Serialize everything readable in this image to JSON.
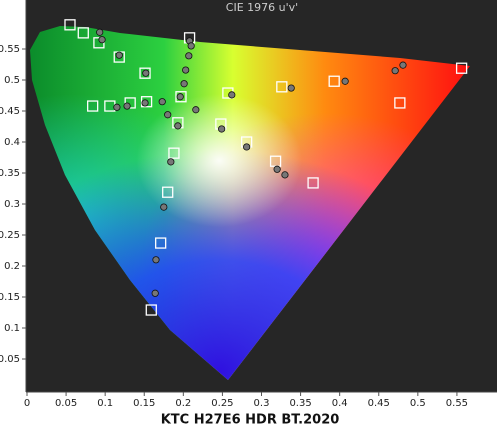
{
  "chart_data": {
    "type": "scatter",
    "title": "CIE 1976 u'v'",
    "x_label": "KTC H27E6 HDR BT.2020",
    "xlim": [
      0,
      0.6
    ],
    "ylim": [
      0,
      0.6
    ],
    "xticks": [
      0,
      0.05,
      0.1,
      0.15,
      0.2,
      0.25,
      0.3,
      0.35,
      0.4,
      0.45,
      0.5,
      0.55
    ],
    "yticks": [
      0.05,
      0.1,
      0.15,
      0.2,
      0.25,
      0.3,
      0.35,
      0.4,
      0.45,
      0.5,
      0.55
    ],
    "series": [
      {
        "marker": "square",
        "color": "#ffffff",
        "x": [
          0.055,
          0.072,
          0.092,
          0.118,
          0.151,
          0.208,
          0.197,
          0.084,
          0.106,
          0.132,
          0.153,
          0.193,
          0.188,
          0.18,
          0.171,
          0.159,
          0.257,
          0.248,
          0.281,
          0.318,
          0.366,
          0.326,
          0.393,
          0.477,
          0.556
        ],
        "values": [
          0.589,
          0.576,
          0.56,
          0.537,
          0.511,
          0.568,
          0.473,
          0.458,
          0.458,
          0.463,
          0.465,
          0.431,
          0.382,
          0.319,
          0.237,
          0.129,
          0.479,
          0.429,
          0.4,
          0.369,
          0.334,
          0.489,
          0.498,
          0.463,
          0.519
        ]
      },
      {
        "marker": "circle",
        "color": "#777777",
        "x": [
          0.093,
          0.096,
          0.118,
          0.152,
          0.208,
          0.21,
          0.207,
          0.203,
          0.201,
          0.196,
          0.115,
          0.128,
          0.151,
          0.173,
          0.18,
          0.193,
          0.216,
          0.262,
          0.249,
          0.281,
          0.32,
          0.33,
          0.338,
          0.407,
          0.471,
          0.481,
          0.184,
          0.175,
          0.165,
          0.164
        ],
        "values": [
          0.577,
          0.565,
          0.54,
          0.511,
          0.563,
          0.555,
          0.539,
          0.516,
          0.494,
          0.473,
          0.456,
          0.458,
          0.463,
          0.465,
          0.444,
          0.426,
          0.452,
          0.476,
          0.421,
          0.392,
          0.356,
          0.347,
          0.487,
          0.498,
          0.515,
          0.524,
          0.368,
          0.295,
          0.21,
          0.156
        ]
      }
    ]
  }
}
